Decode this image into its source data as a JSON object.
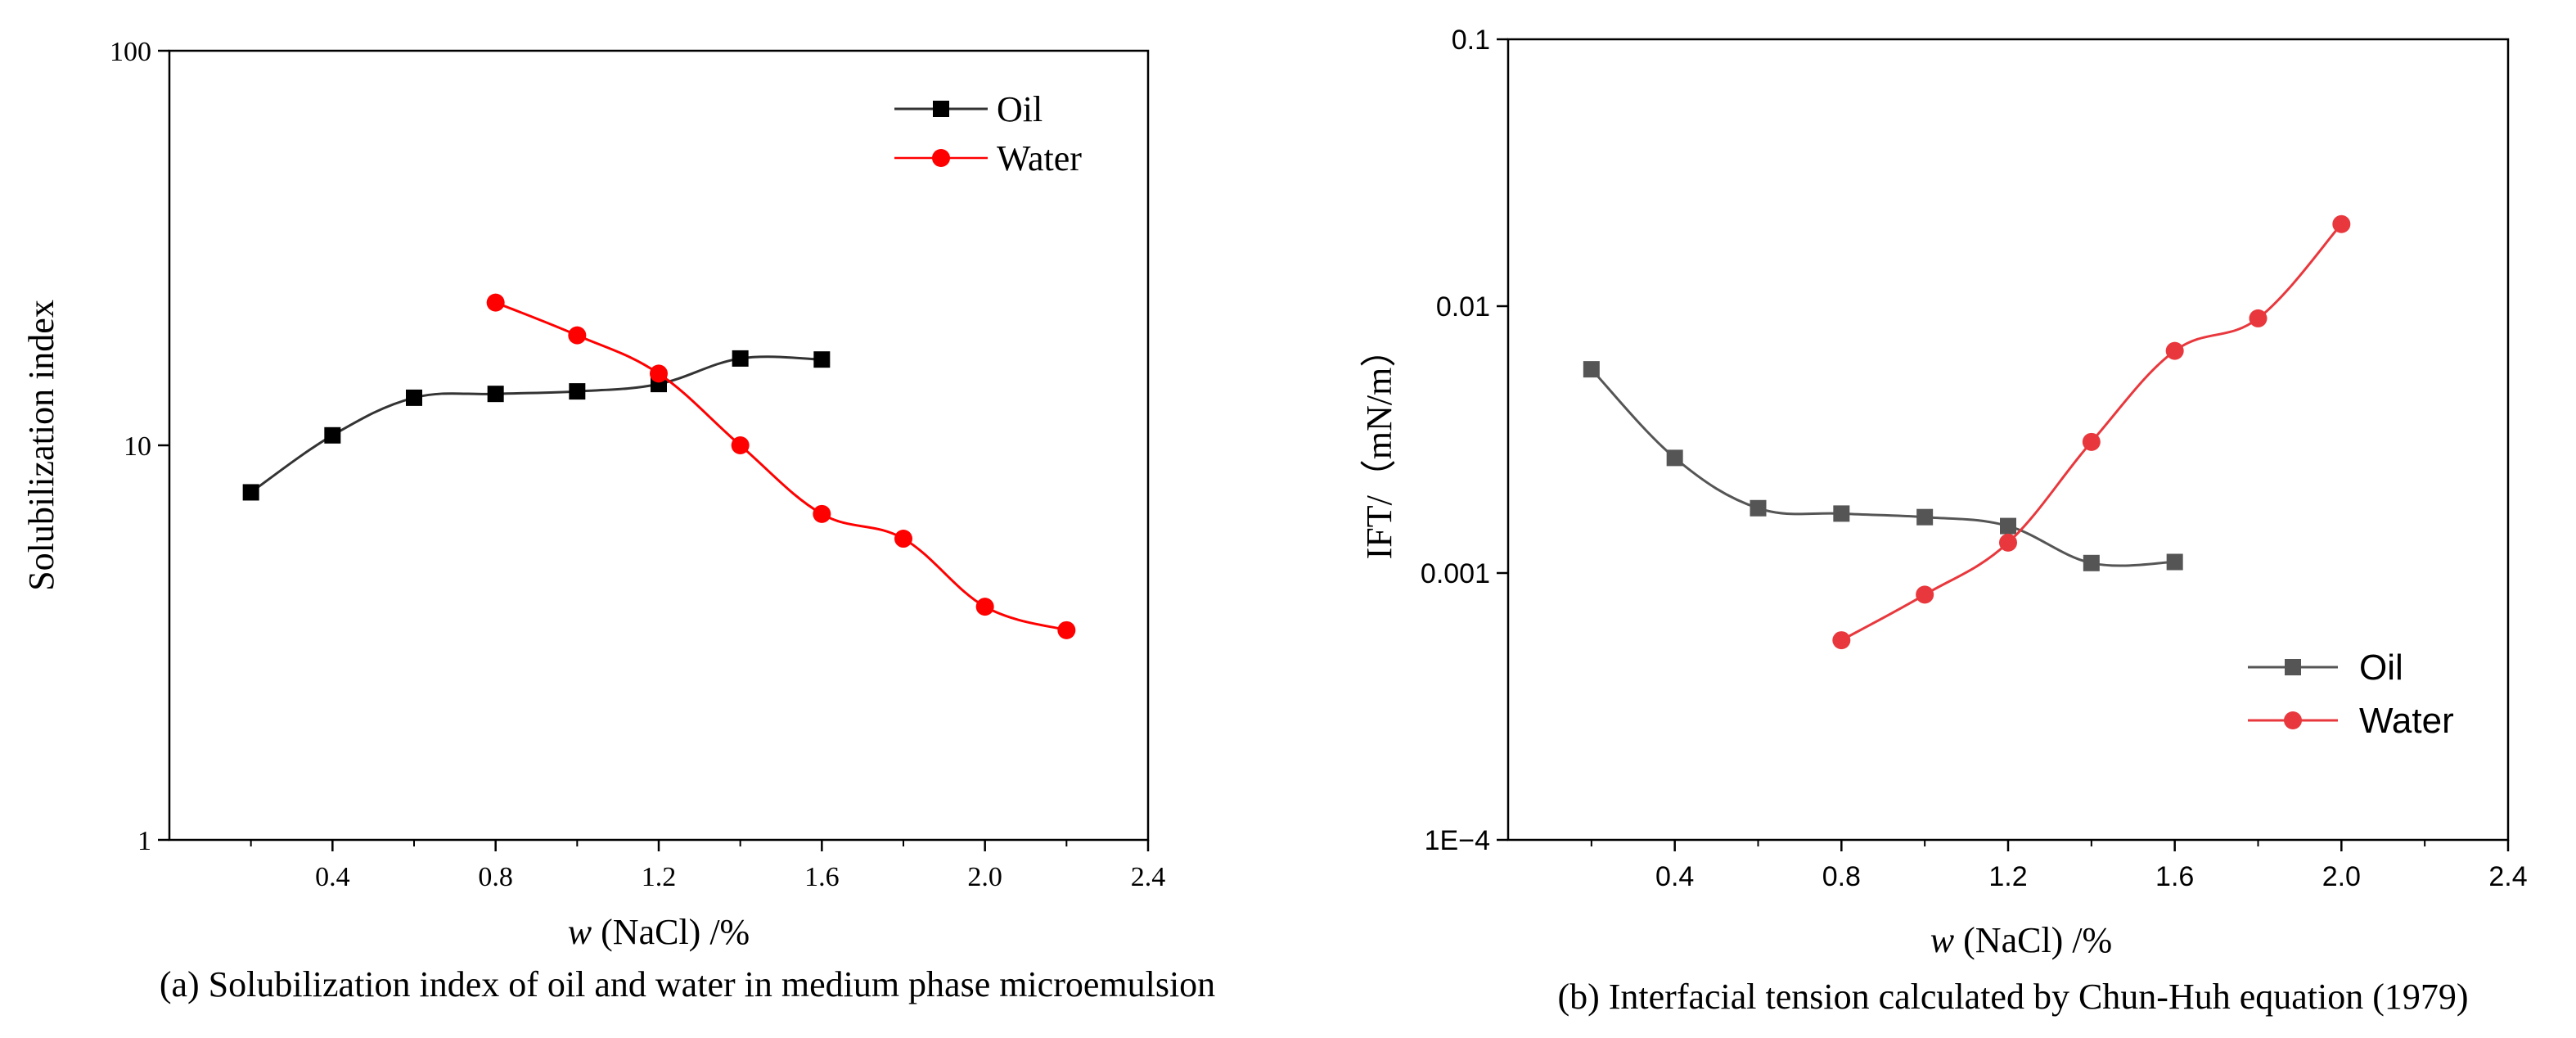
{
  "chart_data": [
    {
      "type": "line",
      "panel": "a",
      "caption": "(a) Solubilization index of oil and water in medium phase microemulsion",
      "xlabel_italic": "w",
      "xlabel_rest": " (NaCl) /%",
      "ylabel": "Solubilization index",
      "xlim": [
        0.0,
        2.4
      ],
      "ylim": [
        1,
        100
      ],
      "yscale": "log",
      "xticks": [
        0.4,
        0.8,
        1.2,
        1.6,
        2.0,
        2.4
      ],
      "xtick_labels": [
        "0.4",
        "0.8",
        "1.2",
        "1.6",
        "2.0",
        "2.4"
      ],
      "yticks": [
        1,
        10,
        100
      ],
      "ytick_labels": [
        "1",
        "10",
        "100"
      ],
      "legend_position": "top-right",
      "series": [
        {
          "name": "Oil",
          "color": "#000000",
          "line_color": "#333333",
          "marker": "square",
          "x": [
            0.2,
            0.4,
            0.6,
            0.8,
            1.0,
            1.2,
            1.4,
            1.6
          ],
          "y": [
            7.6,
            10.6,
            13.2,
            13.5,
            13.7,
            14.3,
            16.6,
            16.5
          ]
        },
        {
          "name": "Water",
          "color": "#ff0000",
          "line_color": "#ff0000",
          "marker": "circle",
          "x": [
            0.8,
            1.0,
            1.2,
            1.4,
            1.6,
            1.8,
            2.0,
            2.2
          ],
          "y": [
            23,
            19,
            15.2,
            10,
            6.7,
            5.8,
            3.9,
            3.4
          ]
        }
      ]
    },
    {
      "type": "line",
      "panel": "b",
      "caption": "(b) Interfacial tension calculated by Chun-Huh equation (1979)",
      "xlabel_italic": "w",
      "xlabel_rest": " (NaCl) /%",
      "ylabel": "IFT/（mN/m）",
      "xlim": [
        0.0,
        2.4
      ],
      "ylim": [
        0.0001,
        0.1
      ],
      "yscale": "log",
      "xticks": [
        0.4,
        0.8,
        1.2,
        1.6,
        2.0,
        2.4
      ],
      "xtick_labels": [
        "0.4",
        "0.8",
        "1.2",
        "1.6",
        "2.0",
        "2.4"
      ],
      "yticks": [
        0.0001,
        0.001,
        0.01,
        0.1
      ],
      "ytick_labels": [
        "1E−4",
        "0.001",
        "0.01",
        "0.1"
      ],
      "legend_position": "bottom-right",
      "series": [
        {
          "name": "Oil",
          "color": "#555555",
          "line_color": "#555555",
          "marker": "square",
          "x": [
            0.2,
            0.4,
            0.6,
            0.8,
            1.0,
            1.2,
            1.4,
            1.6
          ],
          "y": [
            0.0058,
            0.0027,
            0.00175,
            0.00167,
            0.00162,
            0.0015,
            0.00109,
            0.0011
          ]
        },
        {
          "name": "Water",
          "color": "#e8383d",
          "line_color": "#e8383d",
          "marker": "circle",
          "x": [
            0.8,
            1.0,
            1.2,
            1.4,
            1.6,
            1.8,
            2.0
          ],
          "y": [
            0.00056,
            0.00083,
            0.0013,
            0.0031,
            0.0068,
            0.009,
            0.0203
          ]
        }
      ]
    }
  ]
}
